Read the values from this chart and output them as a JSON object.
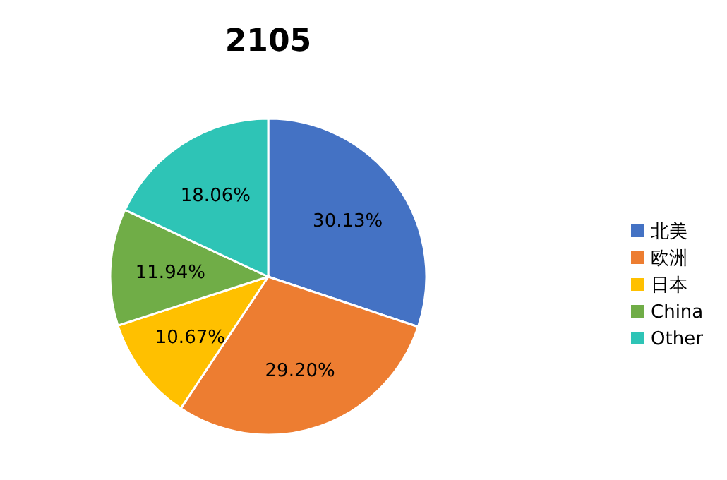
{
  "chart_data": {
    "type": "pie",
    "title": "2105",
    "categories": [
      "北美",
      "欧洲",
      "日本",
      "China",
      "Other"
    ],
    "values": [
      30.13,
      29.2,
      10.67,
      11.94,
      18.06
    ],
    "colors": [
      "#4472c4",
      "#ed7d31",
      "#ffc000",
      "#70ad47",
      "#2ec4b6"
    ],
    "value_labels": [
      "30.13%",
      "29.20%",
      "10.67%",
      "11.94%",
      "18.06%"
    ],
    "legend": "right"
  }
}
